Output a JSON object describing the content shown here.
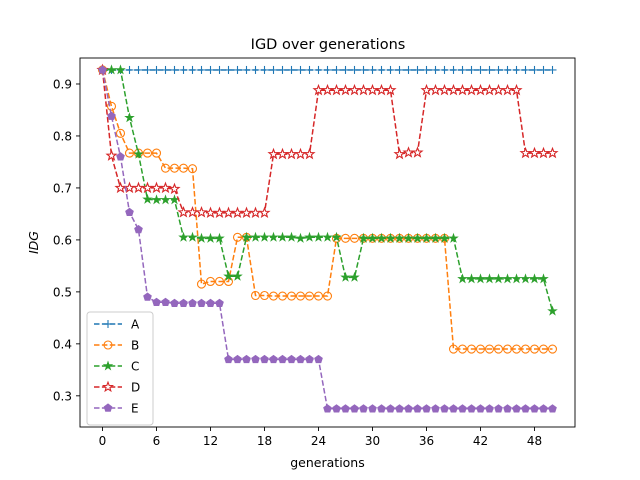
{
  "chart_data": {
    "type": "line",
    "title": "IGD over generations",
    "xlabel": "generations",
    "ylabel": "IDG",
    "xlim": [
      -2.5,
      52.5
    ],
    "ylim": [
      0.24,
      0.95
    ],
    "xticks": [
      0,
      6,
      12,
      18,
      24,
      30,
      36,
      42,
      48
    ],
    "yticks": [
      0.3,
      0.4,
      0.5,
      0.6,
      0.7,
      0.8,
      0.9
    ],
    "ytick_labels": [
      "0.3",
      "0.4",
      "0.5",
      "0.6",
      "0.7",
      "0.8",
      "0.9"
    ],
    "grid": false,
    "legend_position": "lower-left",
    "x": [
      0,
      1,
      2,
      3,
      4,
      5,
      6,
      7,
      8,
      9,
      10,
      11,
      12,
      13,
      14,
      15,
      16,
      17,
      18,
      19,
      20,
      21,
      22,
      23,
      24,
      25,
      26,
      27,
      28,
      29,
      30,
      31,
      32,
      33,
      34,
      35,
      36,
      37,
      38,
      39,
      40,
      41,
      42,
      43,
      44,
      45,
      46,
      47,
      48,
      49,
      50
    ],
    "series": [
      {
        "name": "A",
        "color": "#1f77b4",
        "marker": "plus",
        "values": [
          0.927,
          0.927,
          0.927,
          0.927,
          0.927,
          0.927,
          0.927,
          0.927,
          0.927,
          0.927,
          0.927,
          0.927,
          0.927,
          0.927,
          0.927,
          0.927,
          0.927,
          0.927,
          0.927,
          0.927,
          0.927,
          0.927,
          0.927,
          0.927,
          0.927,
          0.927,
          0.927,
          0.927,
          0.927,
          0.927,
          0.927,
          0.927,
          0.927,
          0.927,
          0.927,
          0.927,
          0.927,
          0.927,
          0.927,
          0.927,
          0.927,
          0.927,
          0.927,
          0.927,
          0.927,
          0.927,
          0.927,
          0.927,
          0.927,
          0.927,
          0.927
        ]
      },
      {
        "name": "B",
        "color": "#ff7f0e",
        "marker": "circle",
        "values": [
          0.927,
          0.857,
          0.805,
          0.767,
          0.767,
          0.767,
          0.767,
          0.738,
          0.738,
          0.738,
          0.737,
          0.515,
          0.52,
          0.52,
          0.52,
          0.605,
          0.605,
          0.493,
          0.493,
          0.492,
          0.492,
          0.492,
          0.492,
          0.492,
          0.492,
          0.492,
          0.603,
          0.603,
          0.603,
          0.603,
          0.603,
          0.603,
          0.603,
          0.603,
          0.603,
          0.603,
          0.603,
          0.603,
          0.603,
          0.39,
          0.39,
          0.39,
          0.39,
          0.39,
          0.39,
          0.39,
          0.39,
          0.39,
          0.39,
          0.39,
          0.39
        ]
      },
      {
        "name": "C",
        "color": "#2ca02c",
        "marker": "star",
        "values": [
          0.927,
          0.927,
          0.927,
          0.835,
          0.765,
          0.678,
          0.677,
          0.677,
          0.677,
          0.605,
          0.605,
          0.603,
          0.603,
          0.603,
          0.53,
          0.53,
          0.605,
          0.605,
          0.605,
          0.605,
          0.605,
          0.605,
          0.603,
          0.605,
          0.605,
          0.605,
          0.605,
          0.528,
          0.528,
          0.603,
          0.603,
          0.603,
          0.603,
          0.603,
          0.603,
          0.603,
          0.603,
          0.603,
          0.603,
          0.603,
          0.525,
          0.525,
          0.525,
          0.525,
          0.525,
          0.525,
          0.525,
          0.525,
          0.525,
          0.525,
          0.463
        ]
      },
      {
        "name": "D",
        "color": "#d62728",
        "marker": "star-open",
        "values": [
          0.927,
          0.762,
          0.7,
          0.7,
          0.7,
          0.7,
          0.7,
          0.7,
          0.698,
          0.653,
          0.653,
          0.653,
          0.652,
          0.652,
          0.652,
          0.652,
          0.652,
          0.652,
          0.652,
          0.765,
          0.765,
          0.765,
          0.765,
          0.765,
          0.888,
          0.888,
          0.888,
          0.888,
          0.888,
          0.888,
          0.888,
          0.888,
          0.888,
          0.765,
          0.768,
          0.768,
          0.888,
          0.888,
          0.888,
          0.888,
          0.888,
          0.888,
          0.888,
          0.888,
          0.888,
          0.888,
          0.888,
          0.767,
          0.767,
          0.767,
          0.767
        ]
      },
      {
        "name": "E",
        "color": "#9467bd",
        "marker": "pentagon",
        "values": [
          0.927,
          0.838,
          0.76,
          0.653,
          0.62,
          0.49,
          0.48,
          0.48,
          0.478,
          0.478,
          0.478,
          0.478,
          0.478,
          0.478,
          0.37,
          0.37,
          0.37,
          0.37,
          0.37,
          0.37,
          0.37,
          0.37,
          0.37,
          0.37,
          0.37,
          0.275,
          0.275,
          0.275,
          0.275,
          0.275,
          0.275,
          0.275,
          0.275,
          0.275,
          0.275,
          0.275,
          0.275,
          0.275,
          0.275,
          0.275,
          0.275,
          0.275,
          0.275,
          0.275,
          0.275,
          0.275,
          0.275,
          0.275,
          0.275,
          0.275,
          0.275
        ]
      }
    ]
  }
}
